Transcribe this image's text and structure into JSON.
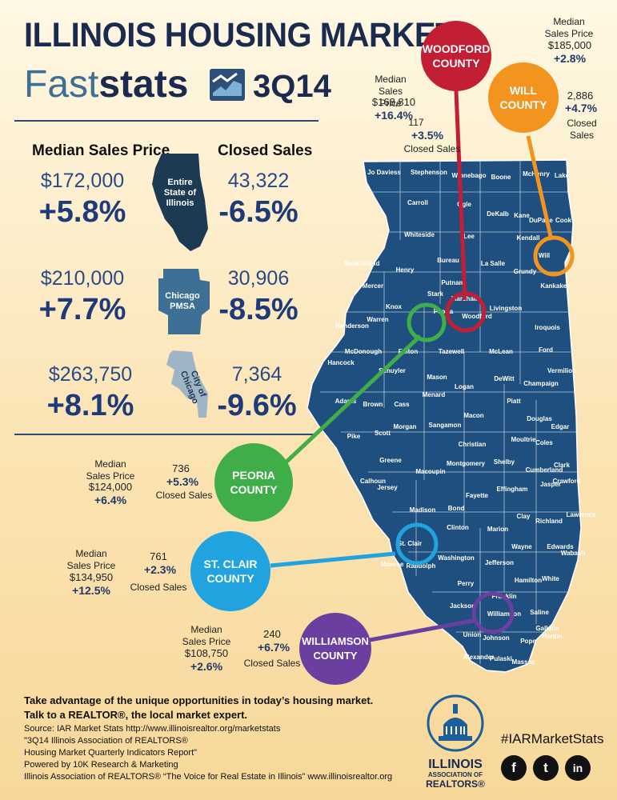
{
  "header": {
    "title": "ILLINOIS HOUSING MARKET",
    "brand_light": "Fast",
    "brand_bold": "stats",
    "quarter": "3Q14"
  },
  "summary": {
    "median_header": "Median Sales Price",
    "closed_header": "Closed Sales",
    "rows": [
      {
        "price": "$172,000",
        "price_pct": "+5.8%",
        "label": "Entire State of Illinois",
        "sales": "43,322",
        "sales_pct": "-6.5%"
      },
      {
        "price": "$210,000",
        "price_pct": "+7.7%",
        "label": "Chicago PMSA",
        "sales": "30,906",
        "sales_pct": "-8.5%"
      },
      {
        "price": "$263,750",
        "price_pct": "+8.1%",
        "label": "City of Chicago",
        "sales": "7,364",
        "sales_pct": "-9.6%"
      }
    ]
  },
  "counties": {
    "woodford": {
      "name": "WOODFORD COUNTY",
      "price_label": "Median Sales Price",
      "price": "$168,810",
      "price_pct": "+16.4%",
      "sales": "117",
      "sales_pct": "+3.5%",
      "sales_label": "Closed Sales",
      "color": "#c21f35"
    },
    "will": {
      "name": "WILL COUNTY",
      "price_label": "Median Sales Price",
      "price": "$185,000",
      "price_pct": "+2.8%",
      "sales": "2,886",
      "sales_pct": "+4.7%",
      "sales_label": "Closed Sales",
      "color": "#f2941e"
    },
    "peoria": {
      "name": "PEORIA COUNTY",
      "price_label": "Median Sales Price",
      "price": "$124,000",
      "price_pct": "+6.4%",
      "sales": "736",
      "sales_pct": "+5.3%",
      "sales_label": "Closed Sales",
      "color": "#3fae49"
    },
    "stclair": {
      "name": "ST. CLAIR COUNTY",
      "price_label": "Median Sales Price",
      "price": "$134,950",
      "price_pct": "+12.5%",
      "sales": "761",
      "sales_pct": "+2.3%",
      "sales_label": "Closed Sales",
      "color": "#21a3e0"
    },
    "williamson": {
      "name": "WILLIAMSON COUNTY",
      "price_label": "Median Sales Price",
      "price": "$108,750",
      "price_pct": "+2.6%",
      "sales": "240",
      "sales_pct": "+6.7%",
      "sales_label": "Closed Sales",
      "color": "#6b3fa0"
    }
  },
  "map_labels": [
    "Jo Daviess",
    "Stephenson",
    "Winnebago",
    "Boone",
    "McHenry",
    "Lake",
    "Carroll",
    "Ogle",
    "DeKalb",
    "Kane",
    "DuPage",
    "Cook",
    "Whiteside",
    "Lee",
    "Kendall",
    "Will",
    "Rock Island",
    "Henry",
    "Bureau",
    "La Salle",
    "Grundy",
    "Kankakee",
    "Mercer",
    "Stark",
    "Putnam",
    "Marshall",
    "Livingston",
    "Knox",
    "Peoria",
    "Woodford",
    "Iroquois",
    "Warren",
    "Henderson",
    "Fulton",
    "Tazewell",
    "McLean",
    "Ford",
    "McDonough",
    "Hancock",
    "Schuyler",
    "Mason",
    "Logan",
    "DeWitt",
    "Champaign",
    "Vermilion",
    "Menard",
    "Piatt",
    "Adams",
    "Brown",
    "Cass",
    "Macon",
    "Douglas",
    "Edgar",
    "Morgan",
    "Sangamon",
    "Pike",
    "Scott",
    "Christian",
    "Moultrie",
    "Coles",
    "Greene",
    "Shelby",
    "Cumberland",
    "Clark",
    "Calhoun",
    "Macoupin",
    "Montgomery",
    "Jersey",
    "Fayette",
    "Effingham",
    "Jasper",
    "Crawford",
    "Madison",
    "Bond",
    "Clay",
    "Richland",
    "Lawrence",
    "Clinton",
    "Marion",
    "St. Clair",
    "Washington",
    "Wayne",
    "Edwards",
    "Wabash",
    "Monroe",
    "Randolph",
    "Perry",
    "Jefferson",
    "Hamilton",
    "White",
    "Franklin",
    "Jackson",
    "Williamson",
    "Saline",
    "Gallatin",
    "Union",
    "Johnson",
    "Pope",
    "Hardin",
    "Alexander",
    "Pulaski",
    "Massac"
  ],
  "footer": {
    "line1": "Take advantage of the unique opportunities in today’s housing market.",
    "line2": "Talk to a REALTOR®, the local market expert.",
    "source": "Source: IAR Market Stats http://www.illinoisrealtor.org/marketstats",
    "report1": "\"3Q14 Illinois Association of REALTORS®",
    "report2": "Housing Market Quarterly Indicators Report\"",
    "powered": "Powered by 10K Research & Marketing",
    "assoc": "Illinois Association of REALTORS® “The Voice for Real Estate in Illinois” www.illinoisrealtor.org",
    "hashtag": "#IARMarketStats",
    "logo_line1": "ILLINOIS",
    "logo_line2": "ASSOCIATION OF",
    "logo_line3": "REALTORS®",
    "social": [
      "f",
      "t",
      "in"
    ]
  }
}
